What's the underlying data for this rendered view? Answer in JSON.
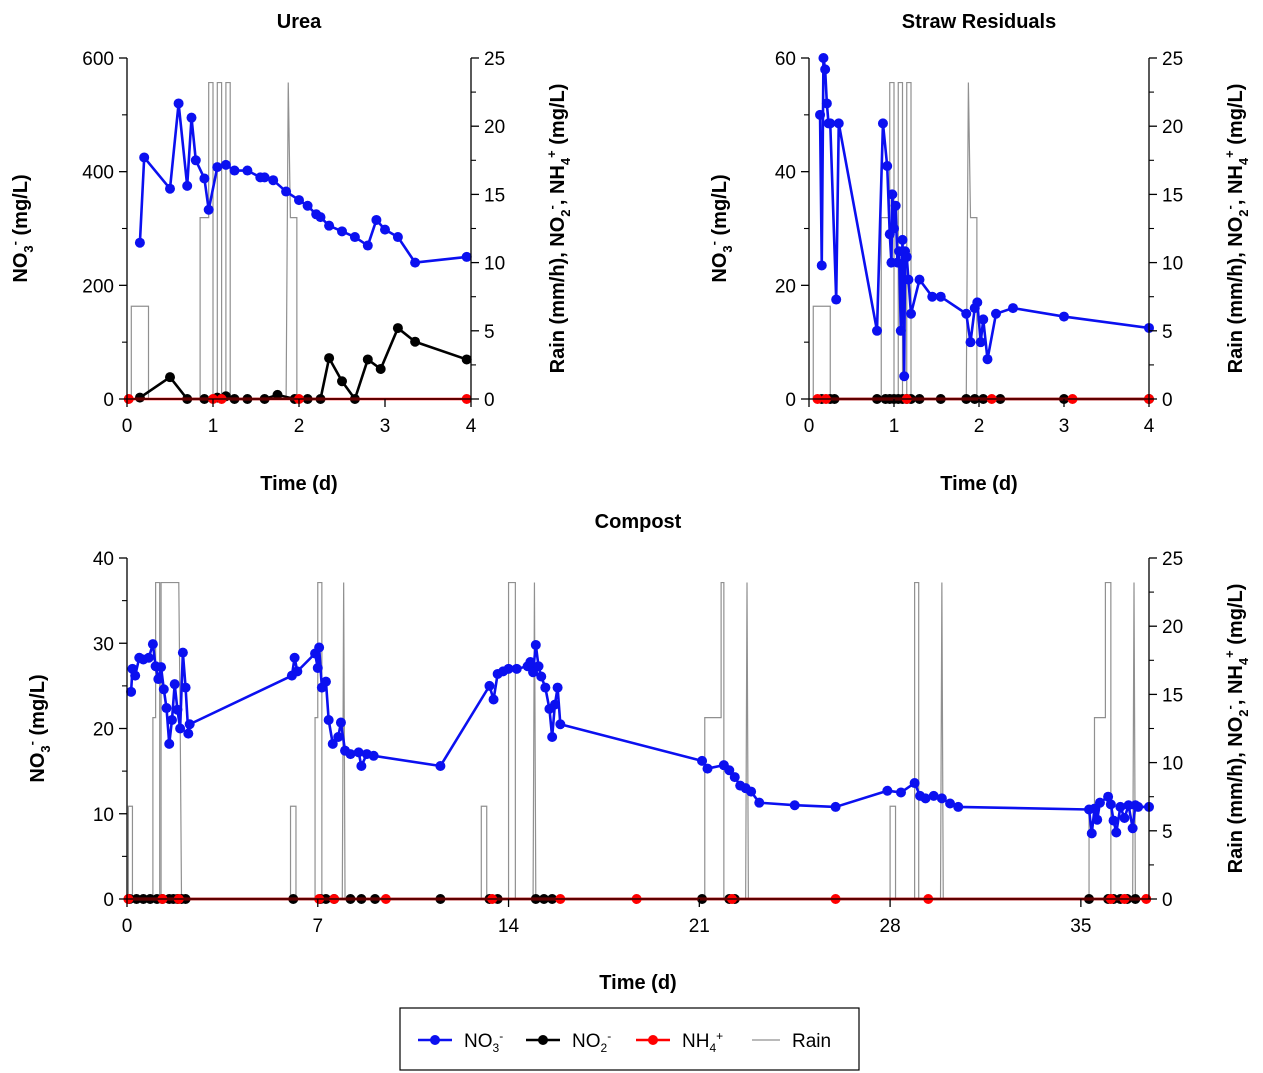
{
  "colors": {
    "no3": "#0b10f0",
    "no2": "#000000",
    "nh4": "#ff0000",
    "rain": "#909090"
  },
  "legend": {
    "items": [
      {
        "key": "no3",
        "label": "NO",
        "sub": "3",
        "sup": "-",
        "style": "line-marker"
      },
      {
        "key": "no2",
        "label": "NO",
        "sub": "2",
        "sup": "-",
        "style": "line-marker"
      },
      {
        "key": "nh4",
        "label": "NH",
        "sub": "4",
        "sup": "+",
        "style": "line-marker"
      },
      {
        "key": "rain",
        "label": "Rain",
        "sub": "",
        "sup": "",
        "style": "line"
      }
    ]
  },
  "chart_data": [
    {
      "id": "urea",
      "type": "line",
      "title": "Urea",
      "xlabel": "Time (d)",
      "ylabel": {
        "main": "NO",
        "sub": "3",
        "sup": "-",
        "rest": " (mg/L)"
      },
      "y2label": {
        "a": "Rain (mm/h), NO",
        "sub1": "2",
        "sup1": "-",
        "b": ", NH",
        "sub2": "4",
        "sup2": "+",
        "c": " (mg/L)"
      },
      "xlim": [
        0,
        4
      ],
      "ylim": [
        0,
        600
      ],
      "y2lim": [
        0,
        25
      ],
      "xticks": [
        0,
        1,
        2,
        3,
        4
      ],
      "xminor": [],
      "yticks": [
        0,
        200,
        400,
        600
      ],
      "yminor": [
        100,
        300,
        500
      ],
      "y2ticks": [
        0,
        5,
        10,
        15,
        20,
        25
      ],
      "series": [
        {
          "key": "no3",
          "axis": "left",
          "x": [
            0.15,
            0.2,
            0.5,
            0.6,
            0.7,
            0.75,
            0.8,
            0.9,
            0.95,
            1.05,
            1.15,
            1.25,
            1.4,
            1.55,
            1.6,
            1.7,
            1.85,
            2.0,
            2.1,
            2.2,
            2.25,
            2.35,
            2.5,
            2.65,
            2.8,
            2.9,
            3.0,
            3.15,
            3.35,
            3.95
          ],
          "y": [
            275,
            425,
            370,
            520,
            375,
            495,
            420,
            388,
            333,
            408,
            412,
            402,
            402,
            390,
            390,
            385,
            365,
            350,
            340,
            325,
            320,
            305,
            295,
            285,
            270,
            315,
            298,
            285,
            240,
            250
          ]
        },
        {
          "key": "no2",
          "axis": "right",
          "x": [
            0.15,
            0.5,
            0.7,
            0.9,
            1.05,
            1.15,
            1.25,
            1.4,
            1.6,
            1.75,
            1.95,
            2.1,
            2.25,
            2.35,
            2.5,
            2.65,
            2.8,
            2.95,
            3.15,
            3.35,
            3.95
          ],
          "y": [
            0.1,
            1.6,
            0.0,
            0.0,
            0.1,
            0.2,
            0.0,
            0.0,
            0.0,
            0.3,
            0.0,
            0.0,
            0.0,
            3.0,
            1.3,
            0.0,
            2.9,
            2.2,
            5.2,
            4.2,
            2.9
          ]
        },
        {
          "key": "nh4",
          "axis": "right",
          "x": [
            0.02,
            1.0,
            1.1,
            2.0,
            3.95
          ],
          "y": [
            0,
            0,
            0,
            0,
            0
          ]
        },
        {
          "key": "rain",
          "axis": "right",
          "x": [
            0.0,
            0.05,
            0.05,
            0.25,
            0.25,
            0.85,
            0.85,
            0.95,
            0.95,
            1.0,
            1.0,
            1.05,
            1.05,
            1.1,
            1.1,
            1.15,
            1.15,
            1.2,
            1.2,
            1.85,
            1.875,
            1.9,
            1.9,
            1.975,
            1.975,
            4.0
          ],
          "y": [
            0,
            0,
            6.8,
            6.8,
            0,
            0,
            13.3,
            13.3,
            23.2,
            23.2,
            0,
            0,
            23.2,
            23.2,
            0,
            0,
            23.2,
            23.2,
            0,
            0,
            23.2,
            13.3,
            13.3,
            13.3,
            0,
            0
          ]
        }
      ]
    },
    {
      "id": "straw",
      "type": "line",
      "title": "Straw Residuals",
      "xlabel": "Time (d)",
      "ylabel": {
        "main": "NO",
        "sub": "3",
        "sup": "-",
        "rest": " (mg/L)"
      },
      "y2label": {
        "a": "Rain (mm/h), NO",
        "sub1": "2",
        "sup1": "-",
        "b": ", NH",
        "sub2": "4",
        "sup2": "+",
        "c": " (mg/L)"
      },
      "xlim": [
        0,
        4
      ],
      "ylim": [
        0,
        60
      ],
      "y2lim": [
        0,
        25
      ],
      "xticks": [
        0,
        1,
        2,
        3,
        4
      ],
      "xminor": [],
      "yticks": [
        0,
        20,
        40,
        60
      ],
      "yminor": [
        10,
        30,
        50
      ],
      "y2ticks": [
        0,
        5,
        10,
        15,
        20,
        25
      ],
      "series": [
        {
          "key": "no3",
          "axis": "left",
          "x": [
            0.13,
            0.15,
            0.17,
            0.19,
            0.21,
            0.23,
            0.25,
            0.32,
            0.35,
            0.8,
            0.87,
            0.92,
            0.95,
            0.97,
            0.98,
            1.0,
            1.02,
            1.04,
            1.06,
            1.08,
            1.1,
            1.12,
            1.13,
            1.15,
            1.17,
            1.2,
            1.3,
            1.45,
            1.55,
            1.85,
            1.9,
            1.95,
            1.98,
            2.02,
            2.05,
            2.1,
            2.2,
            2.4,
            3.0,
            4.0
          ],
          "y": [
            50,
            23.5,
            60,
            58,
            52,
            48.5,
            48.5,
            17.5,
            48.5,
            12,
            48.5,
            41,
            29,
            24,
            36,
            30,
            34,
            24,
            26,
            12,
            28,
            4,
            26,
            25,
            21,
            15,
            21,
            18,
            18,
            15,
            10,
            16,
            17,
            10,
            14,
            7,
            15,
            16,
            14.5,
            12.5
          ]
        },
        {
          "key": "no2",
          "axis": "right",
          "x": [
            0.15,
            0.25,
            0.3,
            0.8,
            0.9,
            0.95,
            1.0,
            1.05,
            1.1,
            1.15,
            1.2,
            1.3,
            1.55,
            1.85,
            1.95,
            2.05,
            2.25,
            3.0,
            4.0
          ],
          "y": [
            0,
            0,
            0,
            0,
            0,
            0,
            0,
            0,
            0,
            0,
            0,
            0,
            0,
            0,
            0,
            0,
            0,
            0,
            0
          ]
        },
        {
          "key": "nh4",
          "axis": "right",
          "x": [
            0.1,
            0.2,
            1.15,
            2.15,
            3.1,
            4.0
          ],
          "y": [
            0,
            0,
            0,
            0,
            0,
            0
          ]
        },
        {
          "key": "rain",
          "axis": "right",
          "x": [
            0.0,
            0.05,
            0.05,
            0.25,
            0.25,
            0.85,
            0.85,
            0.95,
            0.95,
            1.0,
            1.0,
            1.05,
            1.05,
            1.1,
            1.1,
            1.15,
            1.15,
            1.2,
            1.2,
            1.85,
            1.875,
            1.9,
            1.9,
            1.975,
            1.975,
            4.0
          ],
          "y": [
            0,
            0,
            6.8,
            6.8,
            0,
            0,
            13.3,
            13.3,
            23.2,
            23.2,
            0,
            0,
            23.2,
            23.2,
            0,
            0,
            23.2,
            23.2,
            0,
            0,
            23.2,
            13.3,
            13.3,
            13.3,
            0,
            0
          ]
        }
      ]
    },
    {
      "id": "compost",
      "type": "line",
      "title": "Compost",
      "xlabel": "Time (d)",
      "ylabel": {
        "main": "NO",
        "sub": "3",
        "sup": "-",
        "rest": " (mg/L)"
      },
      "y2label": {
        "a": "Rain (mm/h), NO",
        "sub1": "2",
        "sup1": "-",
        "b": ", NH",
        "sub2": "4",
        "sup2": "+",
        "c": " (mg/L)"
      },
      "xlim": [
        0,
        37.5
      ],
      "ylim": [
        0,
        40
      ],
      "y2lim": [
        0,
        25
      ],
      "xticks": [
        0,
        7,
        14,
        21,
        28,
        35
      ],
      "xminor": [],
      "yticks": [
        0,
        10,
        20,
        30,
        40
      ],
      "yminor": [
        5,
        15,
        25,
        35
      ],
      "y2ticks": [
        0,
        5,
        10,
        15,
        20,
        25
      ],
      "series": [
        {
          "key": "no3",
          "axis": "left",
          "x": [
            0.15,
            0.2,
            0.3,
            0.45,
            0.6,
            0.8,
            0.95,
            1.05,
            1.15,
            1.25,
            1.35,
            1.45,
            1.55,
            1.65,
            1.75,
            1.85,
            1.95,
            2.05,
            2.15,
            2.25,
            2.3,
            6.05,
            6.15,
            6.25,
            6.9,
            7.0,
            7.05,
            7.15,
            7.3,
            7.4,
            7.55,
            7.75,
            7.85,
            8.0,
            8.2,
            8.5,
            8.6,
            8.8,
            9.05,
            11.5,
            13.3,
            13.45,
            13.6,
            13.8,
            14.0,
            14.3,
            14.7,
            14.8,
            14.9,
            15.0,
            15.1,
            15.2,
            15.35,
            15.5,
            15.6,
            15.7,
            15.8,
            15.9,
            21.1,
            21.3,
            21.9,
            22.1,
            22.3,
            22.5,
            22.7,
            22.9,
            23.2,
            24.5,
            26.0,
            27.9,
            28.4,
            28.9,
            29.1,
            29.3,
            29.6,
            29.9,
            30.2,
            30.5,
            35.3,
            35.4,
            35.5,
            35.6,
            35.7,
            36.0,
            36.1,
            36.2,
            36.3,
            36.45,
            36.6,
            36.75,
            36.9,
            37.0,
            37.1,
            37.5
          ],
          "y": [
            24.3,
            27.0,
            26.2,
            28.3,
            28.1,
            28.3,
            29.9,
            27.3,
            25.8,
            27.2,
            24.6,
            22.4,
            18.2,
            21.0,
            25.2,
            22.2,
            20.0,
            28.9,
            24.8,
            19.4,
            20.5,
            26.2,
            28.3,
            26.7,
            28.8,
            27.1,
            29.5,
            24.8,
            25.5,
            21.0,
            18.2,
            19.0,
            20.7,
            17.4,
            17.0,
            17.2,
            15.6,
            17.0,
            16.8,
            15.6,
            25.0,
            23.4,
            26.4,
            26.7,
            27.0,
            27.0,
            27.3,
            27.8,
            26.6,
            29.8,
            27.3,
            26.1,
            24.8,
            22.3,
            19.0,
            22.8,
            24.8,
            20.5,
            16.2,
            15.3,
            15.7,
            15.1,
            14.3,
            13.3,
            13.0,
            12.6,
            11.3,
            11.0,
            10.8,
            12.7,
            12.5,
            13.6,
            12.1,
            11.8,
            12.1,
            11.8,
            11.2,
            10.8,
            10.5,
            7.7,
            10.6,
            9.3,
            11.3,
            12.0,
            11.1,
            9.2,
            7.8,
            10.8,
            9.5,
            11.0,
            8.3,
            11.0,
            10.8,
            10.8
          ]
        },
        {
          "key": "no2",
          "axis": "right",
          "x": [
            0.1,
            0.35,
            0.6,
            0.85,
            1.1,
            1.3,
            1.55,
            1.7,
            1.85,
            2.0,
            2.15,
            6.1,
            7.1,
            7.3,
            7.6,
            8.2,
            8.6,
            9.1,
            11.5,
            13.3,
            13.6,
            15.0,
            15.3,
            15.6,
            21.1,
            22.1,
            22.3,
            35.3,
            36.0,
            36.2,
            36.45,
            36.7,
            37.0
          ],
          "y": [
            0,
            0,
            0,
            0,
            0,
            0,
            0,
            0,
            0,
            0,
            0,
            0,
            0,
            0,
            0,
            0,
            0,
            0,
            0,
            0,
            0,
            0,
            0,
            0,
            0,
            0,
            0,
            0,
            0,
            0,
            0,
            0,
            0
          ]
        },
        {
          "key": "nh4",
          "axis": "right",
          "x": [
            0.05,
            1.3,
            1.9,
            7.05,
            7.6,
            9.5,
            13.4,
            15.9,
            18.7,
            22.2,
            26.0,
            29.4,
            36.1,
            36.6,
            37.4
          ],
          "y": [
            0,
            0,
            0,
            0,
            0,
            0,
            0,
            0,
            0,
            0,
            0,
            0,
            0,
            0,
            0
          ]
        },
        {
          "key": "rain",
          "axis": "right",
          "x": [
            0.0,
            0.05,
            0.05,
            0.2,
            0.2,
            0.95,
            0.95,
            1.05,
            1.05,
            1.2,
            1.2,
            1.25,
            1.25,
            1.9,
            1.95,
            2.0,
            6.0,
            6.0,
            6.2,
            6.2,
            6.9,
            6.9,
            7.0,
            7.0,
            7.15,
            7.15,
            7.3,
            7.3,
            7.9,
            7.95,
            8.0,
            13.0,
            13.0,
            13.2,
            13.2,
            14.0,
            14.0,
            14.25,
            14.25,
            14.9,
            14.95,
            15.0,
            21.2,
            21.2,
            21.8,
            21.8,
            21.9,
            21.9,
            22.0,
            22.0,
            22.7,
            22.75,
            22.8,
            28.0,
            28.0,
            28.2,
            28.2,
            28.9,
            28.9,
            29.05,
            29.05,
            29.2,
            29.2,
            29.85,
            29.9,
            29.95,
            35.3,
            35.3,
            35.5,
            35.5,
            35.9,
            35.9,
            36.1,
            36.1,
            36.2,
            36.2,
            36.9,
            36.95,
            37.0,
            37.5
          ],
          "y": [
            0,
            0,
            6.8,
            6.8,
            0,
            0,
            13.3,
            13.3,
            23.2,
            23.2,
            0,
            0,
            23.2,
            23.2,
            13.3,
            0,
            0,
            6.8,
            6.8,
            0,
            0,
            13.3,
            13.3,
            23.2,
            23.2,
            0,
            0,
            0,
            0,
            23.2,
            0,
            0,
            6.8,
            6.8,
            0,
            0,
            23.2,
            23.2,
            0,
            0,
            23.2,
            0,
            0,
            13.3,
            13.3,
            23.2,
            23.2,
            0,
            0,
            0,
            0,
            23.2,
            0,
            0,
            6.8,
            6.8,
            0,
            0,
            23.2,
            23.2,
            0,
            0,
            0,
            0,
            23.2,
            0,
            0,
            6.8,
            6.8,
            13.3,
            13.3,
            23.2,
            23.2,
            0,
            0,
            0,
            0,
            23.2,
            0,
            0
          ]
        }
      ]
    }
  ]
}
